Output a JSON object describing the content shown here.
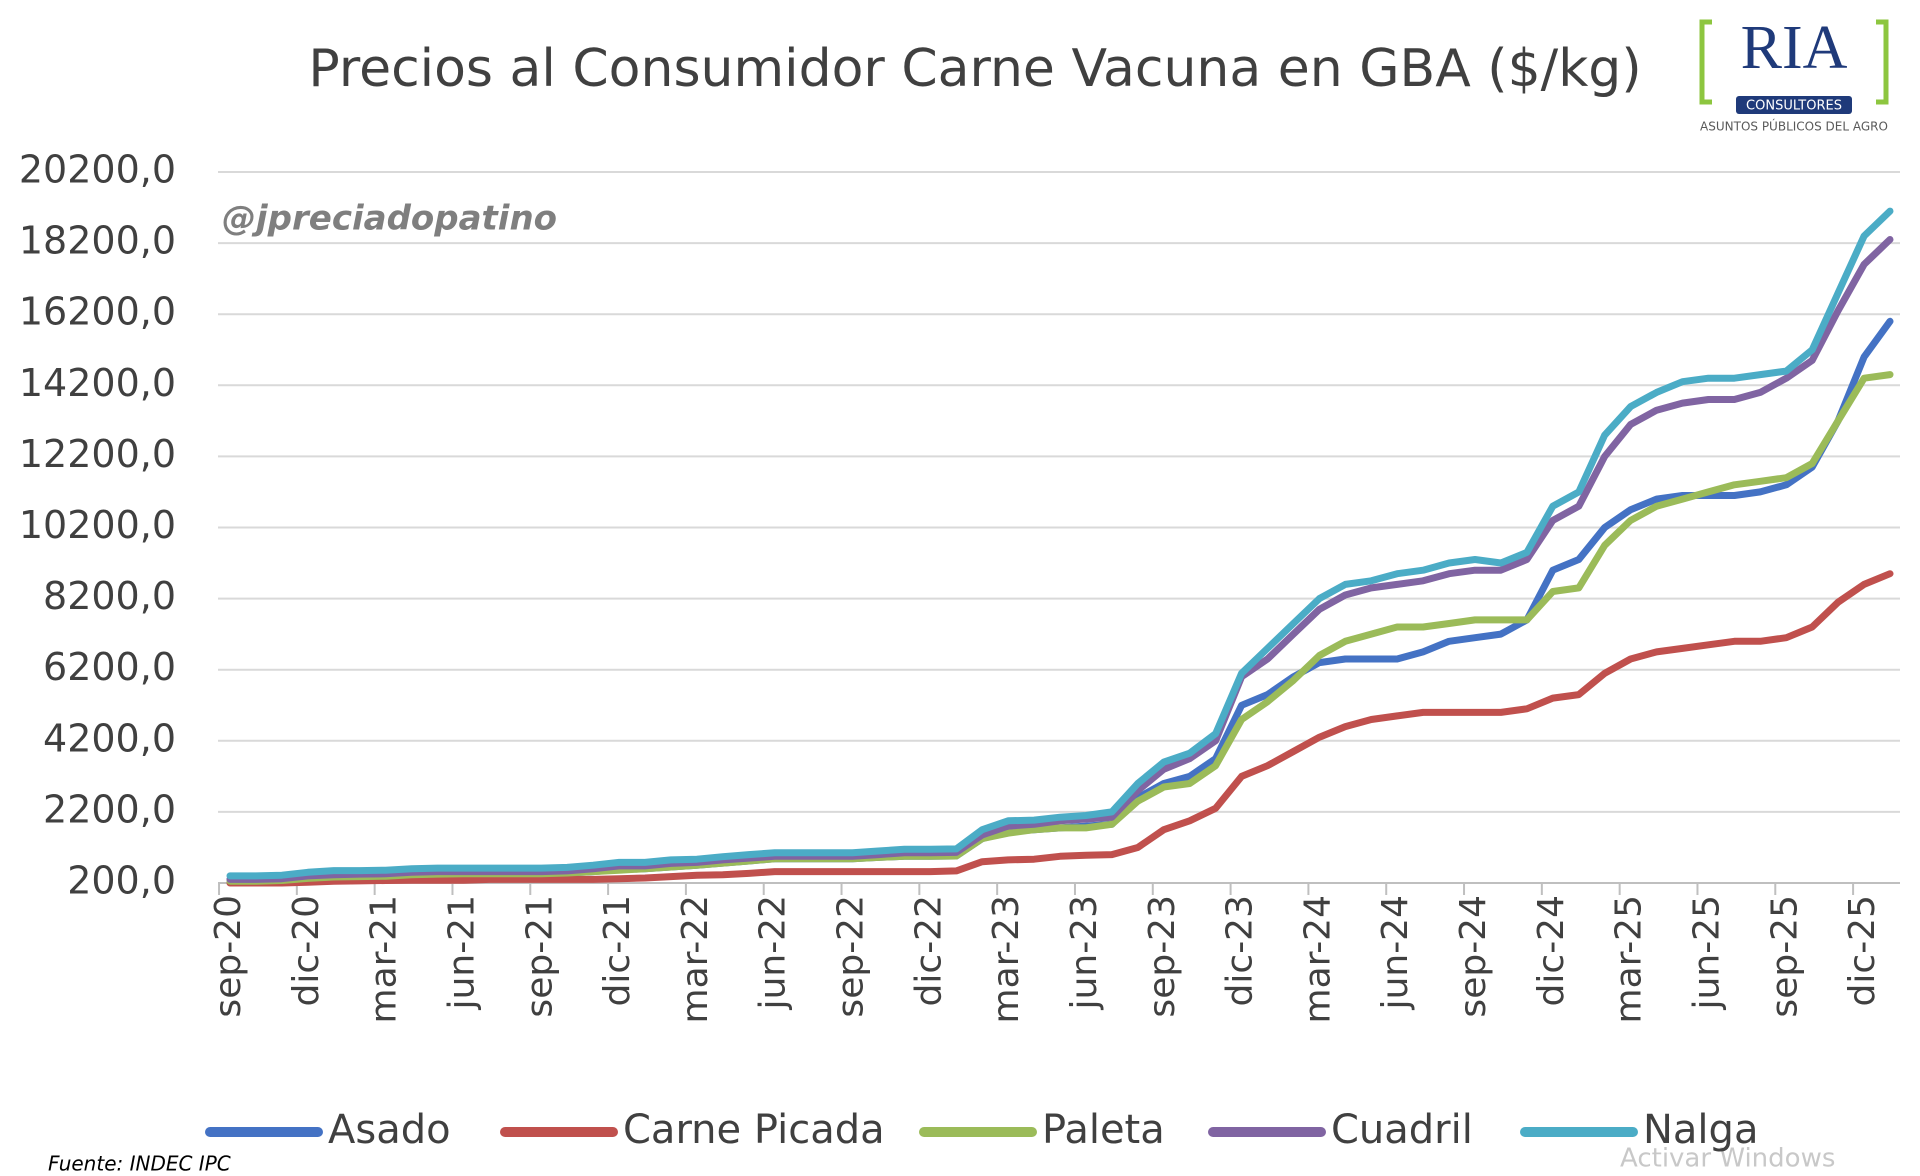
{
  "chart_data": {
    "type": "line",
    "title": "Precios al Consumidor  Carne Vacuna en GBA ($/kg)",
    "annotation": "@jpreciadopatino",
    "source": "Fuente: INDEC IPC",
    "logo": {
      "name": "RIA",
      "subtitle": "CONSULTORES",
      "tagline": "ASUNTOS PÚBLICOS DEL AGRO"
    },
    "overlay_text": "Activar Windows",
    "categories": [
      "sep-20",
      null,
      null,
      "dic-20",
      null,
      null,
      "mar-21",
      null,
      null,
      "jun-21",
      null,
      null,
      "sep-21",
      null,
      null,
      "dic-21",
      null,
      null,
      "mar-22",
      null,
      null,
      "jun-22",
      null,
      null,
      "sep-22",
      null,
      null,
      "dic-22",
      null,
      null,
      "mar-23",
      null,
      null,
      "jun-23",
      null,
      null,
      "sep-23",
      null,
      null,
      "dic-23",
      null,
      null,
      "mar-24",
      null,
      null,
      "jun-24",
      null,
      null,
      "sep-24",
      null,
      null,
      "dic-24",
      null,
      null,
      "mar-25",
      null,
      null,
      "jun-25",
      null,
      null,
      "sep-25",
      null,
      null,
      "dic-25",
      null
    ],
    "series": [
      {
        "name": "Asado",
        "color": "#4472c4",
        "values": [
          300,
          300,
          300,
          380,
          420,
          430,
          440,
          450,
          460,
          460,
          460,
          460,
          460,
          480,
          520,
          580,
          600,
          650,
          700,
          760,
          820,
          880,
          880,
          880,
          880,
          920,
          950,
          950,
          960,
          1450,
          1650,
          1700,
          1750,
          1800,
          1850,
          2600,
          3000,
          3200,
          3700,
          5200,
          5500,
          6000,
          6400,
          6500,
          6500,
          6500,
          6700,
          7000,
          7100,
          7200,
          7600,
          9000,
          9300,
          10200,
          10700,
          11000,
          11100,
          11100,
          11100,
          11200,
          11400,
          11900,
          13200,
          15000,
          16000
        ]
      },
      {
        "name": "Carne Picada",
        "color": "#c0504d",
        "values": [
          200,
          200,
          200,
          220,
          250,
          260,
          270,
          280,
          280,
          280,
          300,
          300,
          300,
          300,
          300,
          320,
          340,
          380,
          420,
          430,
          470,
          520,
          520,
          520,
          520,
          520,
          520,
          520,
          540,
          800,
          850,
          870,
          950,
          980,
          1000,
          1200,
          1700,
          1950,
          2300,
          3200,
          3500,
          3900,
          4300,
          4600,
          4800,
          4900,
          5000,
          5000,
          5000,
          5000,
          5100,
          5400,
          5500,
          6100,
          6500,
          6700,
          6800,
          6900,
          7000,
          7000,
          7100,
          7400,
          8100,
          8600,
          8900
        ]
      },
      {
        "name": "Paleta",
        "color": "#9bbb59",
        "values": [
          250,
          250,
          270,
          330,
          370,
          380,
          390,
          430,
          450,
          460,
          460,
          460,
          460,
          480,
          520,
          560,
          600,
          650,
          700,
          760,
          820,
          880,
          880,
          880,
          880,
          920,
          950,
          950,
          960,
          1450,
          1600,
          1700,
          1750,
          1750,
          1850,
          2500,
          2900,
          3000,
          3500,
          4800,
          5300,
          5900,
          6600,
          7000,
          7200,
          7400,
          7400,
          7500,
          7600,
          7600,
          7600,
          8400,
          8500,
          9700,
          10400,
          10800,
          11000,
          11200,
          11400,
          11500,
          11600,
          12000,
          13200,
          14400,
          14500
        ]
      },
      {
        "name": "Cuadril",
        "color": "#8064a2",
        "values": [
          300,
          300,
          320,
          400,
          430,
          450,
          460,
          500,
          520,
          520,
          520,
          520,
          520,
          540,
          600,
          680,
          680,
          750,
          780,
          850,
          900,
          950,
          950,
          950,
          950,
          1000,
          1050,
          1050,
          1060,
          1550,
          1800,
          1850,
          1950,
          2000,
          2050,
          2800,
          3400,
          3700,
          4200,
          6000,
          6500,
          7200,
          7900,
          8300,
          8500,
          8600,
          8700,
          8900,
          9000,
          9000,
          9300,
          10400,
          10800,
          12200,
          13100,
          13500,
          13700,
          13800,
          13800,
          14000,
          14400,
          14900,
          16300,
          17600,
          18300
        ]
      },
      {
        "name": "Nalga",
        "color": "#4bacc6",
        "values": [
          400,
          400,
          420,
          500,
          550,
          550,
          560,
          600,
          620,
          620,
          620,
          620,
          620,
          640,
          700,
          780,
          780,
          850,
          870,
          940,
          1000,
          1050,
          1050,
          1050,
          1050,
          1100,
          1150,
          1150,
          1160,
          1700,
          1950,
          1970,
          2050,
          2100,
          2200,
          3000,
          3600,
          3850,
          4400,
          6100,
          6800,
          7500,
          8200,
          8600,
          8700,
          8900,
          9000,
          9200,
          9300,
          9200,
          9500,
          10800,
          11200,
          12800,
          13600,
          14000,
          14300,
          14400,
          14400,
          14500,
          14600,
          15200,
          16800,
          18400,
          19100
        ]
      }
    ],
    "ylim": [
      200,
      20200
    ],
    "yticks": [
      {
        "value": 200,
        "label": "200,0"
      },
      {
        "value": 2200,
        "label": "2200,0"
      },
      {
        "value": 4200,
        "label": "4200,0"
      },
      {
        "value": 6200,
        "label": "6200,0"
      },
      {
        "value": 8200,
        "label": "8200,0"
      },
      {
        "value": 10200,
        "label": "10200,0"
      },
      {
        "value": 12200,
        "label": "12200,0"
      },
      {
        "value": 14200,
        "label": "14200,0"
      },
      {
        "value": 16200,
        "label": "16200,0"
      },
      {
        "value": 18200,
        "label": "18200,0"
      },
      {
        "value": 20200,
        "label": "20200,0"
      }
    ],
    "grid": true,
    "legend": "bottom"
  }
}
